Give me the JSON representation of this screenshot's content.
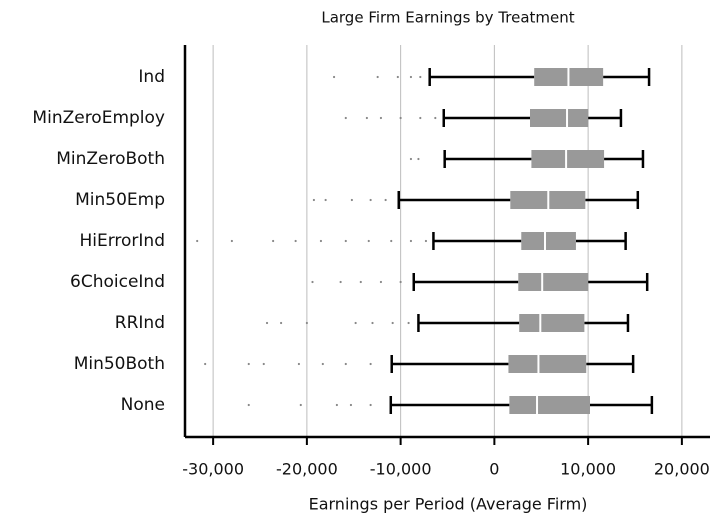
{
  "chart_data": {
    "type": "box",
    "title": "Large Firm Earnings by Treatment",
    "x_label": "Earnings per Period (Average Firm)",
    "color": "#999999",
    "grid": true,
    "categories": [
      "Ind",
      "MinZeroEmploy",
      "MinZeroBoth",
      "Min50Emp",
      "HiErrorInd",
      "6ChoiceInd",
      "RRInd",
      "Min50Both",
      "None"
    ],
    "whisker_low": [
      -6900,
      -5400,
      -5300,
      -10200,
      -6500,
      -8600,
      -8100,
      -10950,
      -11050
    ],
    "q1": [
      4250,
      3800,
      3950,
      1700,
      2870,
      2550,
      2650,
      1500,
      1600
    ],
    "median": [
      7900,
      7750,
      7650,
      5750,
      5400,
      5100,
      4900,
      4700,
      4550
    ],
    "q3": [
      11600,
      10000,
      11700,
      9700,
      8700,
      10000,
      9600,
      9800,
      10200
    ],
    "whisker_high": [
      16500,
      13500,
      15850,
      15300,
      14000,
      16300,
      14250,
      14800,
      16800
    ],
    "outliers": [
      [
        -17100,
        -12450,
        -10300,
        -8900,
        -7900
      ],
      [
        -15850,
        -13600,
        -12100,
        -10000,
        -7900,
        -6300
      ],
      [
        -8900,
        -8100
      ],
      [
        -19250,
        -18000,
        -15200,
        -13200,
        -11600
      ],
      [
        -31700,
        -28000,
        -23600,
        -21200,
        -18500,
        -15850,
        -13400,
        -11000,
        -8900,
        -7300
      ],
      [
        -19400,
        -16400,
        -14250,
        -12100,
        -10000
      ],
      [
        -24250,
        -22750,
        -20000,
        -14800,
        -13000,
        -10850,
        -9150
      ],
      [
        -30850,
        -26200,
        -24600,
        -20850,
        -18300,
        -15850,
        -13200
      ],
      [
        -26200,
        -20650,
        -16800,
        -15300,
        -13200
      ]
    ],
    "xlim": [
      -33000,
      23000
    ],
    "xticks": [
      {
        "value": -30000,
        "label": "-30,000"
      },
      {
        "value": -20000,
        "label": "-20,000"
      },
      {
        "value": -10000,
        "label": "-10,000"
      },
      0,
      {
        "value": 10000,
        "label": "10,000"
      },
      {
        "value": 20000,
        "label": "20,000"
      }
    ]
  }
}
